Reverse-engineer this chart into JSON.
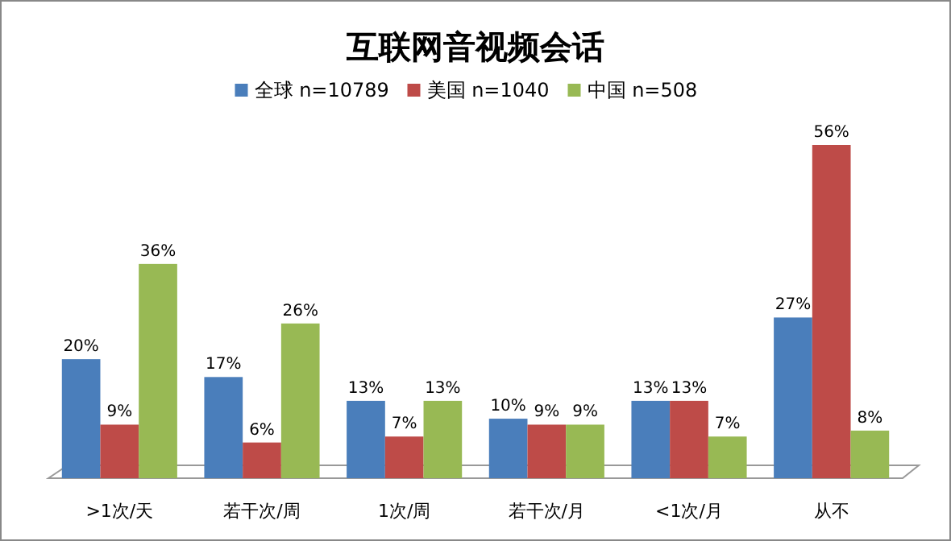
{
  "chart_data": {
    "type": "bar",
    "title": "互联网音视频会话",
    "categories": [
      ">1次/天",
      "若干次/周",
      "1次/周",
      "若干次/月",
      "<1次/月",
      "从不"
    ],
    "series": [
      {
        "name": "全球 n=10789",
        "color": "#4a7ebb",
        "values": [
          20,
          17,
          13,
          10,
          13,
          27
        ],
        "value_labels": [
          "20%",
          "17%",
          "13%",
          "10%",
          "13%",
          "27%"
        ]
      },
      {
        "name": "美国 n=1040",
        "color": "#be4b48",
        "values": [
          9,
          6,
          7,
          9,
          13,
          56
        ],
        "value_labels": [
          "9%",
          "6%",
          "7%",
          "9%",
          "13%",
          "56%"
        ]
      },
      {
        "name": "中国 n=508",
        "color": "#98b954",
        "values": [
          36,
          26,
          13,
          9,
          7,
          8
        ],
        "value_labels": [
          "36%",
          "26%",
          "13%",
          "9%",
          "7%",
          "8%"
        ]
      }
    ],
    "legend": "top"
  }
}
